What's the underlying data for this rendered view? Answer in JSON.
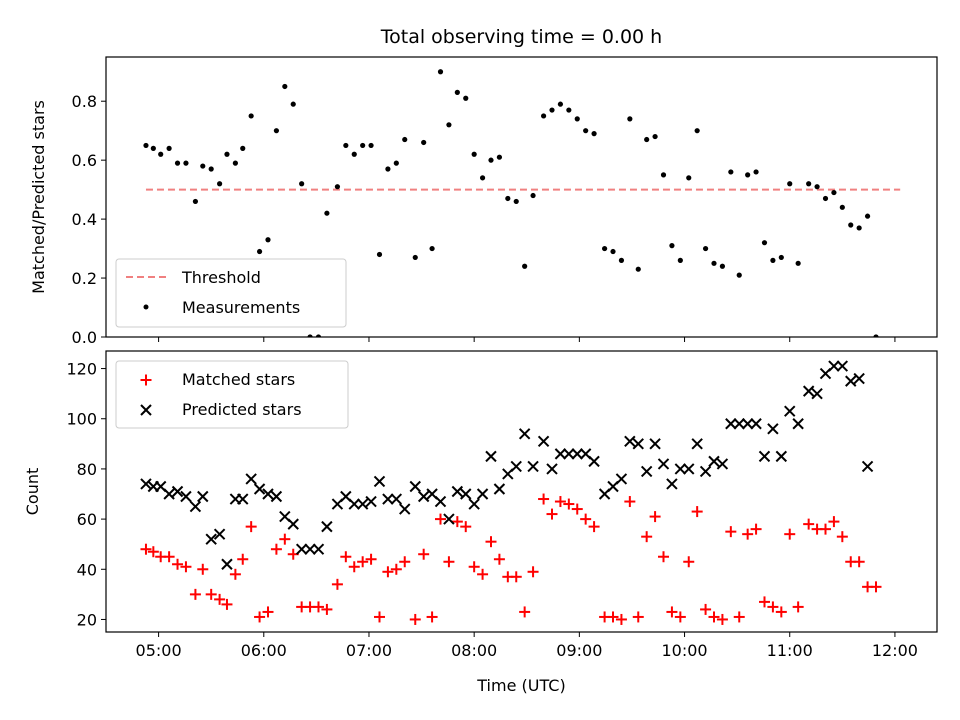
{
  "chart_data": [
    {
      "type": "scatter",
      "title": "Total observing time = 0.00 h",
      "xlabel": "",
      "ylabel": "Matched/Predicted stars",
      "xlim_hours": [
        4.5,
        12.4
      ],
      "ylim": [
        0,
        0.95
      ],
      "yticks": [
        0,
        0.2,
        0.4,
        0.6,
        0.8
      ],
      "ytick_labels": [
        "0.0",
        "0.2",
        "0.4",
        "0.6",
        "0.8"
      ],
      "legend_position": "lower-left",
      "threshold": {
        "name": "Threshold",
        "value": 0.5,
        "x_start": 4.88,
        "x_end": 12.05,
        "color": "#f08080",
        "style": "dashed"
      },
      "series": [
        {
          "name": "Measurements",
          "marker": "dot",
          "color": "#000000",
          "points": [
            [
              4.88,
              0.65
            ],
            [
              4.95,
              0.64
            ],
            [
              5.02,
              0.62
            ],
            [
              5.1,
              0.64
            ],
            [
              5.18,
              0.59
            ],
            [
              5.26,
              0.59
            ],
            [
              5.35,
              0.46
            ],
            [
              5.42,
              0.58
            ],
            [
              5.5,
              0.57
            ],
            [
              5.58,
              0.52
            ],
            [
              5.65,
              0.62
            ],
            [
              5.73,
              0.59
            ],
            [
              5.8,
              0.64
            ],
            [
              5.88,
              0.75
            ],
            [
              5.96,
              0.29
            ],
            [
              6.04,
              0.33
            ],
            [
              6.12,
              0.7
            ],
            [
              6.2,
              0.85
            ],
            [
              6.28,
              0.79
            ],
            [
              6.36,
              0.52
            ],
            [
              6.44,
              0.0
            ],
            [
              6.52,
              0.0
            ],
            [
              6.6,
              0.42
            ],
            [
              6.7,
              0.51
            ],
            [
              6.78,
              0.65
            ],
            [
              6.86,
              0.62
            ],
            [
              6.94,
              0.65
            ],
            [
              7.02,
              0.65
            ],
            [
              7.1,
              0.28
            ],
            [
              7.18,
              0.57
            ],
            [
              7.26,
              0.59
            ],
            [
              7.34,
              0.67
            ],
            [
              7.44,
              0.27
            ],
            [
              7.52,
              0.66
            ],
            [
              7.6,
              0.3
            ],
            [
              7.68,
              0.9
            ],
            [
              7.76,
              0.72
            ],
            [
              7.84,
              0.83
            ],
            [
              7.92,
              0.81
            ],
            [
              8.0,
              0.62
            ],
            [
              8.08,
              0.54
            ],
            [
              8.16,
              0.6
            ],
            [
              8.24,
              0.61
            ],
            [
              8.32,
              0.47
            ],
            [
              8.4,
              0.46
            ],
            [
              8.48,
              0.24
            ],
            [
              8.56,
              0.48
            ],
            [
              8.66,
              0.75
            ],
            [
              8.74,
              0.77
            ],
            [
              8.82,
              0.79
            ],
            [
              8.9,
              0.77
            ],
            [
              8.98,
              0.74
            ],
            [
              9.06,
              0.7
            ],
            [
              9.14,
              0.69
            ],
            [
              9.24,
              0.3
            ],
            [
              9.32,
              0.29
            ],
            [
              9.4,
              0.26
            ],
            [
              9.48,
              0.74
            ],
            [
              9.56,
              0.23
            ],
            [
              9.64,
              0.67
            ],
            [
              9.72,
              0.68
            ],
            [
              9.8,
              0.55
            ],
            [
              9.88,
              0.31
            ],
            [
              9.96,
              0.26
            ],
            [
              10.04,
              0.54
            ],
            [
              10.12,
              0.7
            ],
            [
              10.2,
              0.3
            ],
            [
              10.28,
              0.25
            ],
            [
              10.36,
              0.24
            ],
            [
              10.44,
              0.56
            ],
            [
              10.52,
              0.21
            ],
            [
              10.6,
              0.55
            ],
            [
              10.68,
              0.56
            ],
            [
              10.76,
              0.32
            ],
            [
              10.84,
              0.26
            ],
            [
              10.92,
              0.27
            ],
            [
              11.0,
              0.52
            ],
            [
              11.08,
              0.25
            ],
            [
              11.18,
              0.52
            ],
            [
              11.26,
              0.51
            ],
            [
              11.34,
              0.47
            ],
            [
              11.42,
              0.49
            ],
            [
              11.5,
              0.44
            ],
            [
              11.58,
              0.38
            ],
            [
              11.66,
              0.37
            ],
            [
              11.74,
              0.41
            ],
            [
              11.82,
              0.0
            ]
          ]
        }
      ]
    },
    {
      "type": "scatter",
      "title": "",
      "xlabel": "Time (UTC)",
      "ylabel": "Count",
      "xlim_hours": [
        4.5,
        12.4
      ],
      "ylim": [
        15,
        127
      ],
      "xticks_hours": [
        5,
        6,
        7,
        8,
        9,
        10,
        11,
        12
      ],
      "xtick_labels": [
        "05:00",
        "06:00",
        "07:00",
        "08:00",
        "09:00",
        "10:00",
        "11:00",
        "12:00"
      ],
      "yticks": [
        20,
        40,
        60,
        80,
        100,
        120
      ],
      "ytick_labels": [
        "20",
        "40",
        "60",
        "80",
        "100",
        "120"
      ],
      "legend_position": "upper-left",
      "series": [
        {
          "name": "Matched stars",
          "marker": "plus",
          "color": "#ff0000",
          "points": [
            [
              4.88,
              48
            ],
            [
              4.95,
              47
            ],
            [
              5.02,
              45
            ],
            [
              5.1,
              45
            ],
            [
              5.18,
              42
            ],
            [
              5.26,
              41
            ],
            [
              5.35,
              30
            ],
            [
              5.42,
              40
            ],
            [
              5.5,
              30
            ],
            [
              5.58,
              28
            ],
            [
              5.65,
              26
            ],
            [
              5.73,
              38
            ],
            [
              5.8,
              44
            ],
            [
              5.88,
              57
            ],
            [
              5.96,
              21
            ],
            [
              6.04,
              23
            ],
            [
              6.12,
              48
            ],
            [
              6.2,
              52
            ],
            [
              6.28,
              46
            ],
            [
              6.36,
              25
            ],
            [
              6.44,
              25
            ],
            [
              6.52,
              25
            ],
            [
              6.6,
              24
            ],
            [
              6.7,
              34
            ],
            [
              6.78,
              45
            ],
            [
              6.86,
              41
            ],
            [
              6.94,
              43
            ],
            [
              7.02,
              44
            ],
            [
              7.1,
              21
            ],
            [
              7.18,
              39
            ],
            [
              7.26,
              40
            ],
            [
              7.34,
              43
            ],
            [
              7.44,
              20
            ],
            [
              7.52,
              46
            ],
            [
              7.6,
              21
            ],
            [
              7.68,
              60
            ],
            [
              7.76,
              43
            ],
            [
              7.84,
              59
            ],
            [
              7.92,
              57
            ],
            [
              8.0,
              41
            ],
            [
              8.08,
              38
            ],
            [
              8.16,
              51
            ],
            [
              8.24,
              44
            ],
            [
              8.32,
              37
            ],
            [
              8.4,
              37
            ],
            [
              8.48,
              23
            ],
            [
              8.56,
              39
            ],
            [
              8.66,
              68
            ],
            [
              8.74,
              62
            ],
            [
              8.82,
              67
            ],
            [
              8.9,
              66
            ],
            [
              8.98,
              64
            ],
            [
              9.06,
              60
            ],
            [
              9.14,
              57
            ],
            [
              9.24,
              21
            ],
            [
              9.32,
              21
            ],
            [
              9.4,
              20
            ],
            [
              9.48,
              67
            ],
            [
              9.56,
              21
            ],
            [
              9.64,
              53
            ],
            [
              9.72,
              61
            ],
            [
              9.8,
              45
            ],
            [
              9.88,
              23
            ],
            [
              9.96,
              21
            ],
            [
              10.04,
              43
            ],
            [
              10.12,
              63
            ],
            [
              10.2,
              24
            ],
            [
              10.28,
              21
            ],
            [
              10.36,
              20
            ],
            [
              10.44,
              55
            ],
            [
              10.52,
              21
            ],
            [
              10.6,
              54
            ],
            [
              10.68,
              56
            ],
            [
              10.76,
              27
            ],
            [
              10.84,
              25
            ],
            [
              10.92,
              23
            ],
            [
              11.0,
              54
            ],
            [
              11.08,
              25
            ],
            [
              11.18,
              58
            ],
            [
              11.26,
              56
            ],
            [
              11.34,
              56
            ],
            [
              11.42,
              59
            ],
            [
              11.5,
              53
            ],
            [
              11.58,
              43
            ],
            [
              11.66,
              43
            ],
            [
              11.74,
              33
            ],
            [
              11.82,
              33
            ]
          ]
        },
        {
          "name": "Predicted stars",
          "marker": "x",
          "color": "#000000",
          "points": [
            [
              4.88,
              74
            ],
            [
              4.95,
              73
            ],
            [
              5.02,
              73
            ],
            [
              5.1,
              70
            ],
            [
              5.18,
              71
            ],
            [
              5.26,
              69
            ],
            [
              5.35,
              65
            ],
            [
              5.42,
              69
            ],
            [
              5.5,
              52
            ],
            [
              5.58,
              54
            ],
            [
              5.65,
              42
            ],
            [
              5.73,
              68
            ],
            [
              5.8,
              68
            ],
            [
              5.88,
              76
            ],
            [
              5.96,
              72
            ],
            [
              6.04,
              70
            ],
            [
              6.12,
              69
            ],
            [
              6.2,
              61
            ],
            [
              6.28,
              58
            ],
            [
              6.36,
              48
            ],
            [
              6.44,
              48
            ],
            [
              6.52,
              48
            ],
            [
              6.6,
              57
            ],
            [
              6.7,
              66
            ],
            [
              6.78,
              69
            ],
            [
              6.86,
              66
            ],
            [
              6.94,
              66
            ],
            [
              7.02,
              67
            ],
            [
              7.1,
              75
            ],
            [
              7.18,
              68
            ],
            [
              7.26,
              68
            ],
            [
              7.34,
              64
            ],
            [
              7.44,
              73
            ],
            [
              7.52,
              69
            ],
            [
              7.6,
              70
            ],
            [
              7.68,
              67
            ],
            [
              7.76,
              60
            ],
            [
              7.84,
              71
            ],
            [
              7.92,
              70
            ],
            [
              8.0,
              66
            ],
            [
              8.08,
              70
            ],
            [
              8.16,
              85
            ],
            [
              8.24,
              72
            ],
            [
              8.32,
              78
            ],
            [
              8.4,
              81
            ],
            [
              8.48,
              94
            ],
            [
              8.56,
              81
            ],
            [
              8.66,
              91
            ],
            [
              8.74,
              80
            ],
            [
              8.82,
              86
            ],
            [
              8.9,
              86
            ],
            [
              8.98,
              86
            ],
            [
              9.06,
              86
            ],
            [
              9.14,
              83
            ],
            [
              9.24,
              70
            ],
            [
              9.32,
              73
            ],
            [
              9.4,
              76
            ],
            [
              9.48,
              91
            ],
            [
              9.56,
              90
            ],
            [
              9.64,
              79
            ],
            [
              9.72,
              90
            ],
            [
              9.8,
              82
            ],
            [
              9.88,
              74
            ],
            [
              9.96,
              80
            ],
            [
              10.04,
              80
            ],
            [
              10.12,
              90
            ],
            [
              10.2,
              79
            ],
            [
              10.28,
              83
            ],
            [
              10.36,
              82
            ],
            [
              10.44,
              98
            ],
            [
              10.52,
              98
            ],
            [
              10.6,
              98
            ],
            [
              10.68,
              98
            ],
            [
              10.76,
              85
            ],
            [
              10.84,
              96
            ],
            [
              10.92,
              85
            ],
            [
              11.0,
              103
            ],
            [
              11.08,
              98
            ],
            [
              11.18,
              111
            ],
            [
              11.26,
              110
            ],
            [
              11.34,
              118
            ],
            [
              11.42,
              121
            ],
            [
              11.5,
              121
            ],
            [
              11.58,
              115
            ],
            [
              11.66,
              116
            ],
            [
              11.74,
              81
            ]
          ]
        }
      ]
    }
  ]
}
